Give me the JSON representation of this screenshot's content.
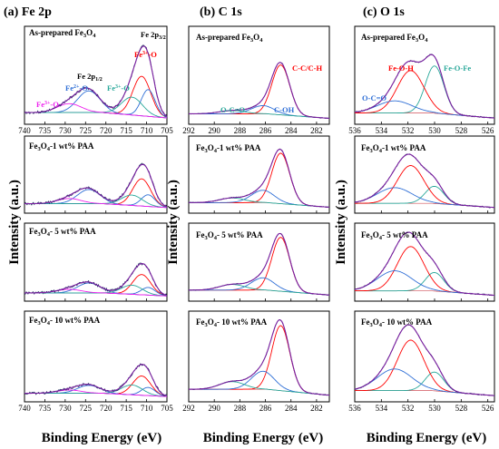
{
  "figure": {
    "ylabel": "Intensity (a.u.)",
    "xlabel": "Binding Energy (eV)"
  },
  "chart_data": [
    {
      "type": "line",
      "panel_title": "(a) Fe 2p",
      "xlabel": "Binding Energy (eV)",
      "ylabel": "Intensity (a.u.)",
      "xlim": [
        740,
        705
      ],
      "xticks": [
        "740",
        "735",
        "730",
        "725",
        "720",
        "715",
        "710",
        "705"
      ],
      "samples": [
        "As-prepared Fe3O4",
        "Fe3O4-1 wt% PAA",
        "Fe3O4- 5 wt% PAA",
        "Fe3O4- 10 wt% PAA"
      ],
      "components": [
        {
          "name": "Fe 2p3/2",
          "position": 710.8
        },
        {
          "name": "Fe 2p1/2",
          "position": 724.4
        },
        {
          "name": "Fe3+-O",
          "position": 711.2,
          "color": "#ff0000"
        },
        {
          "name": "Fe2+-O",
          "position": 709.6,
          "color": "#2f6fd6"
        },
        {
          "name": "Fe2+-O (satellite)",
          "position": 724.0,
          "color": "#2f6fd6"
        },
        {
          "name": "Fe3+-O (satellite)",
          "position": 713.5,
          "color": "#2aa89a"
        },
        {
          "name": "Fe3+-O (satellite)",
          "position": 729.0,
          "color": "#ee22ee"
        }
      ]
    },
    {
      "type": "line",
      "panel_title": "(b) C 1s",
      "xlabel": "Binding Energy (eV)",
      "ylabel": "Intensity (a.u.)",
      "xlim": [
        292,
        281
      ],
      "xticks": [
        "292",
        "290",
        "288",
        "286",
        "284",
        "282"
      ],
      "samples": [
        "As-prepared Fe3O4",
        "Fe3O4-1 wt% PAA",
        "Fe3O4- 5 wt% PAA",
        "Fe3O4- 10 wt% PAA"
      ],
      "components": [
        {
          "name": "C-C/C-H",
          "position": 284.8,
          "color": "#ff0000"
        },
        {
          "name": "C-OH",
          "position": 286.2,
          "color": "#2f6fd6"
        },
        {
          "name": "O-C=O",
          "position": 288.6,
          "color": "#2aa89a"
        }
      ]
    },
    {
      "type": "line",
      "panel_title": "(c) O 1s",
      "xlabel": "Binding Energy (eV)",
      "ylabel": "Intensity (a.u.)",
      "xlim": [
        536,
        525.5
      ],
      "xticks": [
        "536",
        "534",
        "532",
        "530",
        "528",
        "526"
      ],
      "samples": [
        "As-prepared Fe3O4",
        "Fe3O4-1 wt% PAA",
        "Fe3O4- 5 wt% PAA",
        "Fe3O4- 10 wt% PAA"
      ],
      "components": [
        {
          "name": "Fe-O-Fe",
          "position": 530.0,
          "color": "#2aa89a"
        },
        {
          "name": "Fe-O-H",
          "position": 531.8,
          "color": "#ff0000"
        },
        {
          "name": "O-C=O",
          "position": 533.0,
          "color": "#2f6fd6"
        }
      ]
    }
  ],
  "sample_labels": {
    "s0": {
      "pre": "As-prepared Fe",
      "sub1": "3",
      "mid": "O",
      "sub2": "4",
      "post": ""
    },
    "s1": {
      "pre": "Fe",
      "sub1": "3",
      "mid": "O",
      "sub2": "4",
      "post": "-1 wt% PAA"
    },
    "s2": {
      "pre": "Fe",
      "sub1": "3",
      "mid": "O",
      "sub2": "4",
      "post": "- 5 wt% PAA"
    },
    "s3": {
      "pre": "Fe",
      "sub1": "3",
      "mid": "O",
      "sub2": "4",
      "post": "- 10 wt% PAA"
    }
  },
  "annotations": {
    "fe": {
      "p32_main": "Fe  2p",
      "p32_sub": "3/2",
      "p12_main": "Fe  2p",
      "p12_sub": "1/2",
      "fe3": "Fe",
      "fe3_sup": "3+",
      "fe3_post": "-O",
      "fe2": "Fe",
      "fe2_sup": "2+",
      "fe2_post": "-O",
      "fe3b": "Fe",
      "fe3b_sup": "3+",
      "fe3b_post": "-O",
      "fe3c": "Fe",
      "fe3c_sup": "3+",
      "fe3c_post": "-O"
    },
    "c": {
      "cc": "C-C/C-H",
      "coh": "C-OH",
      "oco": "O-C=O"
    },
    "o": {
      "feoh": "Fe-O-H",
      "feofe": "Fe-O-Fe",
      "oco": "O-C=O"
    }
  },
  "colors": {
    "envelope": "#7a1fa0",
    "raw": "#1a2a5a",
    "background": "#d0505a",
    "red": "#ff0000",
    "blue": "#2f6fd6",
    "teal": "#2aa89a",
    "magenta": "#ee22ee"
  }
}
